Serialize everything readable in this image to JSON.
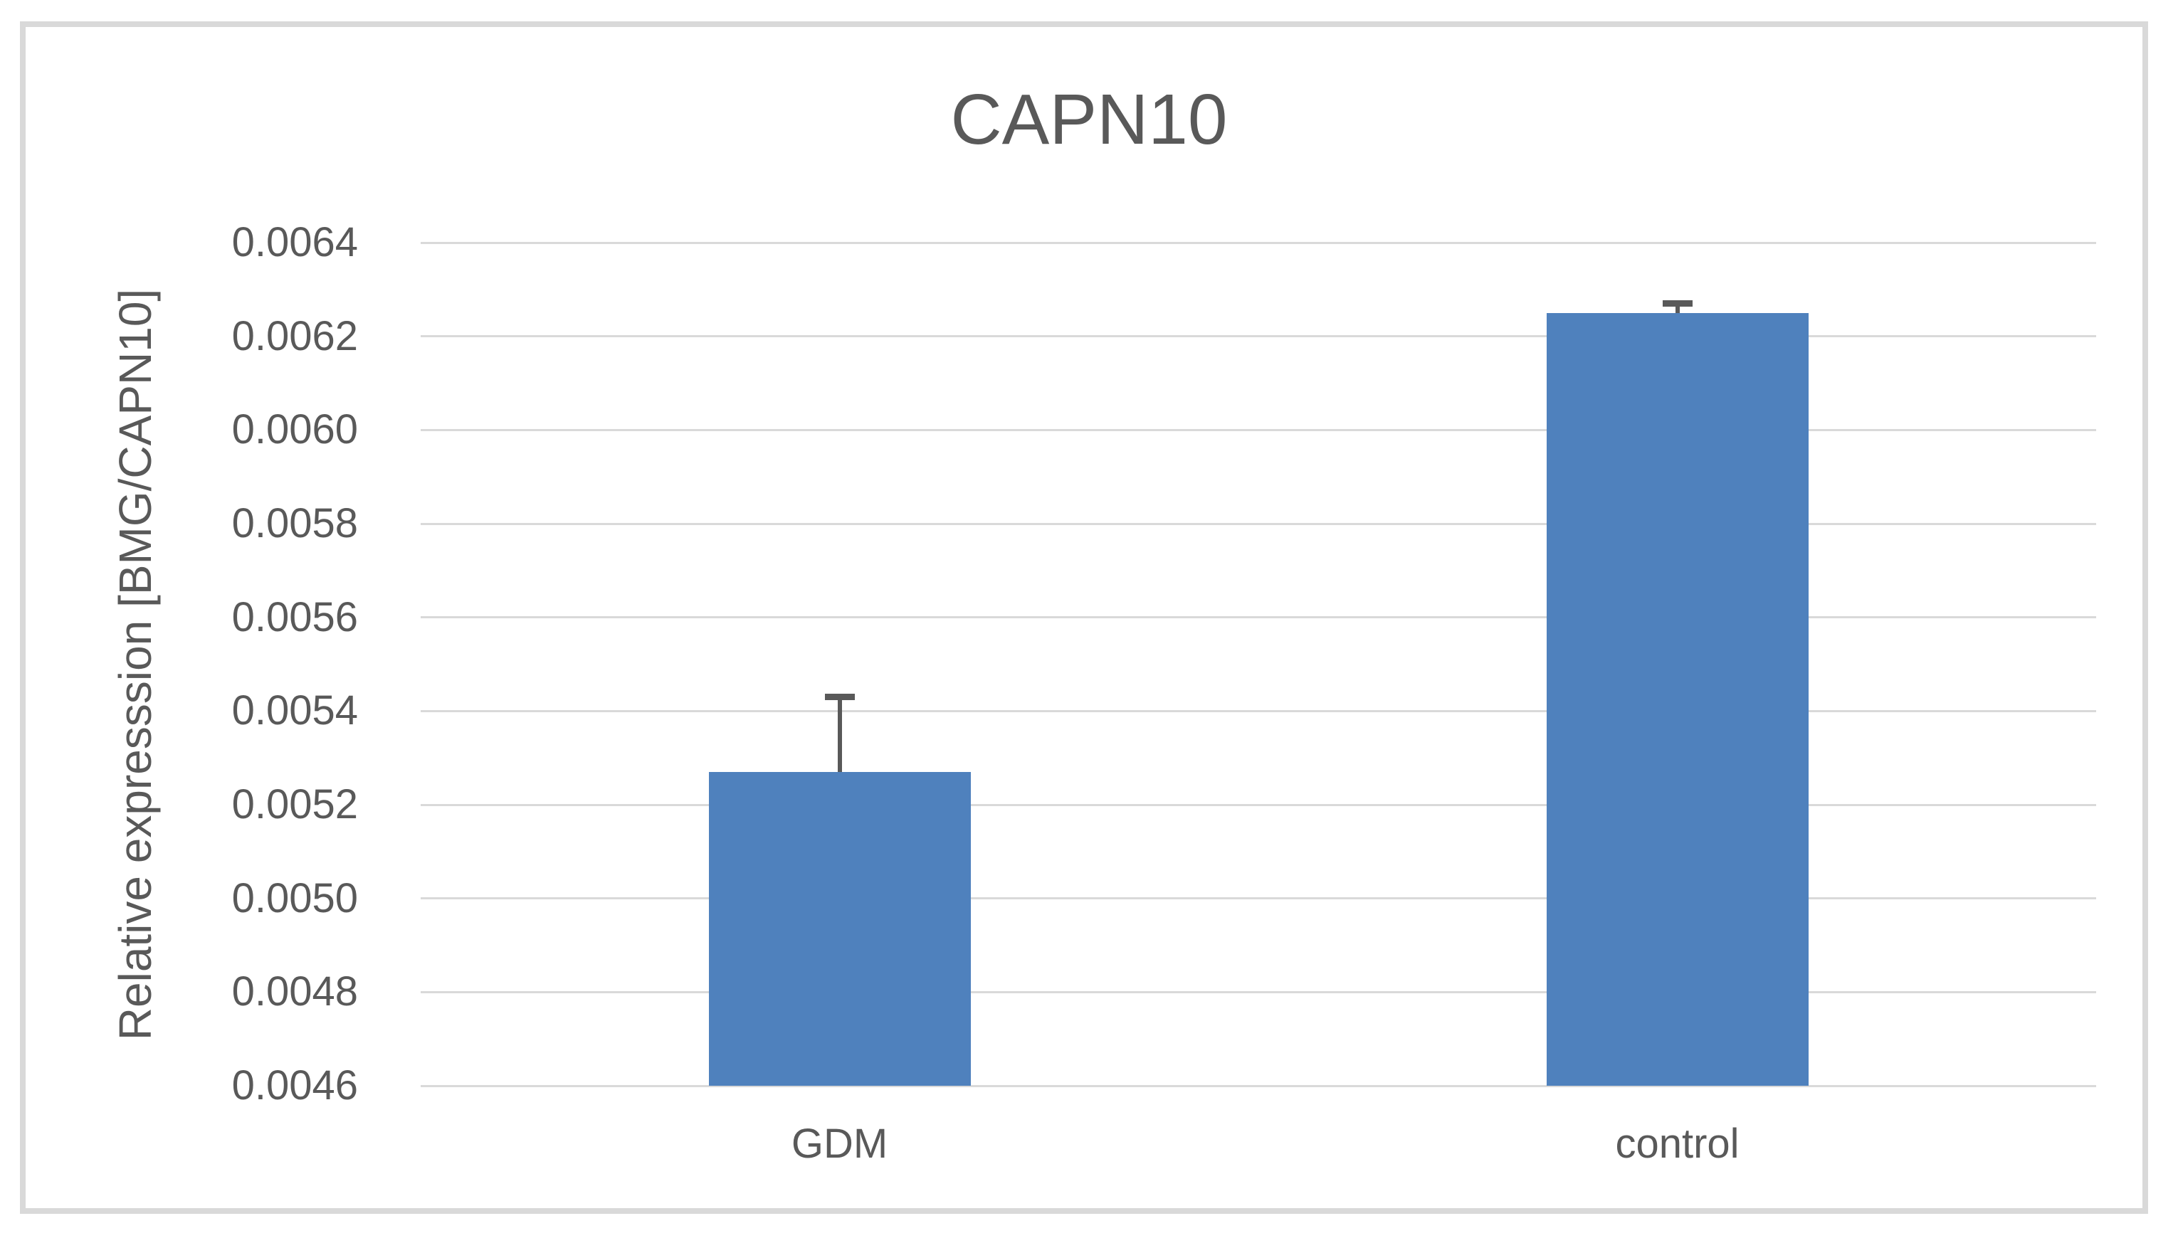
{
  "chart_data": {
    "type": "bar",
    "title": "CAPN10",
    "ylabel": "Relative expresssion [BMG/CAPN10]",
    "xlabel": "",
    "categories": [
      "GDM",
      "control"
    ],
    "values": [
      0.00527,
      0.00625
    ],
    "errors_plus": [
      0.00016,
      2e-05
    ],
    "ylim": [
      0.0046,
      0.0064
    ],
    "ytick_step": 0.0002,
    "tick_decimals": 4,
    "grid": true,
    "legend": false,
    "colors": {
      "bar": "#4f81bd",
      "text": "#595959",
      "gridline": "#d9d9d9",
      "chart_border": "#d9d9d9",
      "error_bar": "#595959"
    }
  }
}
